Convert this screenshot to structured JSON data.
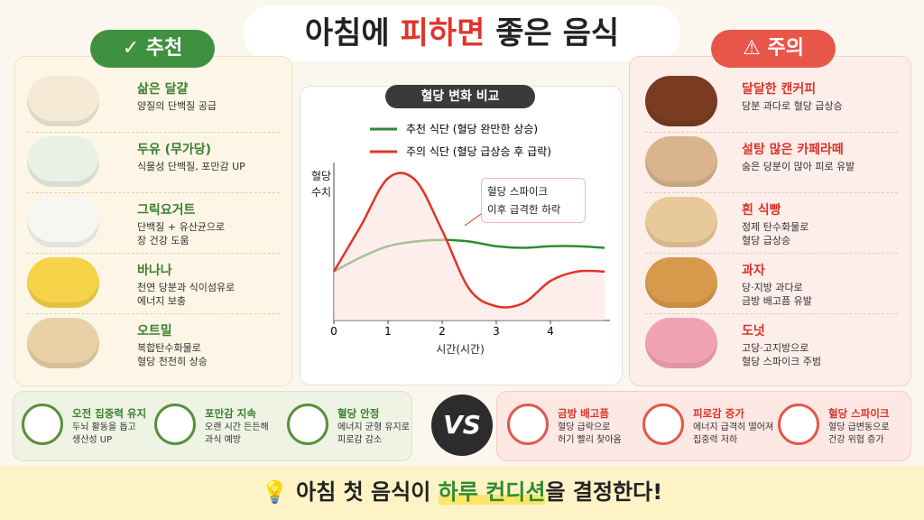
{
  "title": {
    "prefix": "아침에",
    "highlight": "피하면",
    "suffix": "좋은 음식"
  },
  "recommend": {
    "badge": "추천",
    "items": [
      {
        "name": "삶은 달걀",
        "desc": "양질의 단백질 공급"
      },
      {
        "name": "두유 (무가당)",
        "desc": "식물성 단백질, 포만감 UP"
      },
      {
        "name": "그릭요거트",
        "desc": "단백질 + 유산균으로\n장 건강 도움"
      },
      {
        "name": "바나나",
        "desc": "천연 당분과 식이섬유로\n에너지 보충"
      },
      {
        "name": "오트밀",
        "desc": "복합탄수화물로\n혈당 천천히 상승"
      }
    ]
  },
  "caution": {
    "badge": "주의",
    "items": [
      {
        "name": "달달한 캔커피",
        "desc": "당분 과다로 혈당 급상승"
      },
      {
        "name": "설탕 많은 카페라떼",
        "desc": "숨은 당분이 많아 피로 유발"
      },
      {
        "name": "흰 식빵",
        "desc": "정제 탄수화물로\n혈당 급상승"
      },
      {
        "name": "과자",
        "desc": "당·지방 과다로\n금방 배고픔 유발"
      },
      {
        "name": "도넛",
        "desc": "고당·고지방으로\n혈당 스파이크 주범"
      }
    ]
  },
  "chart_data": {
    "type": "line",
    "title": "혈당 변화 비교",
    "xlabel": "시간(시간)",
    "ylabel": "혈당\n수치",
    "annotation": "혈당 스파이크\n이후 급격한 하락",
    "x": [
      0,
      0.5,
      1,
      1.5,
      2,
      2.5,
      3,
      3.5,
      4,
      4.5,
      5
    ],
    "series": [
      {
        "name": "추천 식단 (혈당 완만한 상승)",
        "color": "#2e8b2e",
        "values": [
          31,
          40,
          47,
          50,
          51,
          50,
          47,
          46,
          47,
          47,
          46
        ]
      },
      {
        "name": "주의 식단 (혈당 급상승 후 급락)",
        "color": "#e0342a",
        "values": [
          31,
          60,
          90,
          89,
          57,
          20,
          9,
          11,
          25,
          31,
          31
        ]
      }
    ],
    "xlim": [
      0,
      5.1
    ],
    "ylim": [
      0,
      100
    ],
    "xticks": [
      0,
      1,
      2,
      3,
      4
    ]
  },
  "benefits": [
    {
      "title": "오전 집중력 유지",
      "desc": "두뇌 활동을 돕고\n생산성 UP"
    },
    {
      "title": "포만감 지속",
      "desc": "오랜 시간 든든해\n과식 예방"
    },
    {
      "title": "혈당 안정",
      "desc": "에너지 균형 유지로\n피로감 감소"
    }
  ],
  "vs": "VS",
  "risks": [
    {
      "title": "금방 배고픔",
      "desc": "혈당 급락으로\n허기 빨리 찾아옴"
    },
    {
      "title": "피로감 증가",
      "desc": "에너지 급격히 떨어져\n집중력 저하"
    },
    {
      "title": "혈당 스파이크",
      "desc": "혈당 급변동으로\n건강 위협 증가"
    }
  ],
  "footer": {
    "prefix": "아침 첫 음식이",
    "highlight": "하루 컨디션",
    "suffix": "을 결정한다!"
  }
}
